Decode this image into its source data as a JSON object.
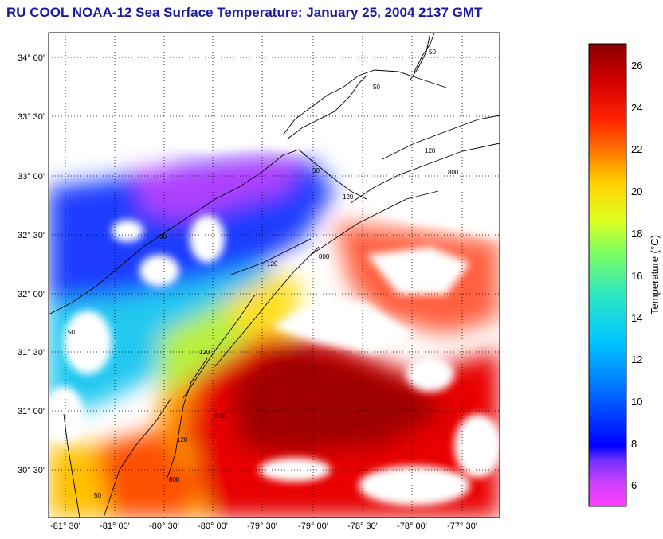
{
  "title": "RU COOL  NOAA-12  Sea Surface Temperature:  January 25, 2004 2137 GMT",
  "lat_ticks": [
    "34° 00'",
    "33° 30'",
    "33° 00'",
    "32° 30'",
    "32° 00'",
    "31° 30'",
    "31° 00'",
    "30° 30'"
  ],
  "lon_ticks": [
    "-81° 30'",
    "-81° 00'",
    "-80° 30'",
    "-80° 00'",
    "-79° 30'",
    "-79° 00'",
    "-78° 30'",
    "-78° 00'",
    "-77° 30'"
  ],
  "isobath_labels": [
    "50",
    "50",
    "120",
    "800",
    "50",
    "120",
    "800",
    "120",
    "800",
    "120",
    "50",
    "120",
    "800",
    "50",
    "50"
  ],
  "colorbar": {
    "label": "Temperature (°C)",
    "ticks": [
      "26",
      "24",
      "22",
      "20",
      "18",
      "16",
      "14",
      "12",
      "10",
      "8",
      "6"
    ],
    "range": [
      5,
      27
    ]
  },
  "colors": {
    "title": "#1a1aa0",
    "land_cloud": "#ffffff"
  }
}
